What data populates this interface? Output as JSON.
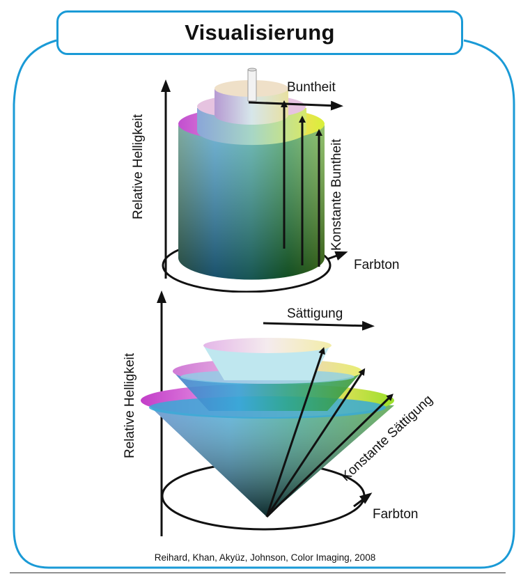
{
  "title": "Visualisierung",
  "top_diagram": {
    "axis_vertical": "Relative Helligkeit",
    "axis_horizontal": "Buntheit",
    "constant_label": "Konstante Buntheit",
    "rotation_label": "Farbton"
  },
  "bottom_diagram": {
    "axis_vertical": "Relative Helligkeit",
    "axis_horizontal": "Sättigung",
    "constant_label": "Konstante Sättigung",
    "rotation_label": "Farbton"
  },
  "citation": "Reihard, Khan, Akyüz, Johnson, Color Imaging, 2008",
  "colors": {
    "frame": "#1a9ad6",
    "text": "#111111"
  }
}
